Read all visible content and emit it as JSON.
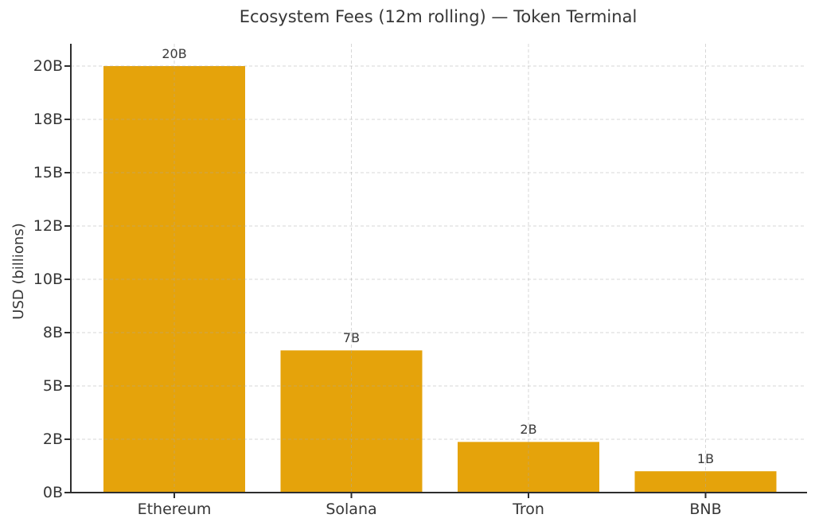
{
  "chart_data": {
    "type": "bar",
    "title": "Ecosystem Fees (12m rolling) — Token Terminal",
    "ylabel": "USD (billions)",
    "xlabel": "",
    "categories": [
      "Ethereum",
      "Solana",
      "Tron",
      "BNB"
    ],
    "values": [
      20,
      7,
      1.9,
      0.8
    ],
    "bar_labels": [
      "20B",
      "7B",
      "2B",
      "1B"
    ],
    "ytick_values": [
      0,
      2,
      5,
      8,
      10,
      12,
      15,
      18,
      20
    ],
    "ytick_labels": [
      "0B",
      "2B",
      "5B",
      "8B",
      "10B",
      "12B",
      "15B",
      "18B",
      "20B"
    ],
    "ylim": [
      0,
      20
    ],
    "legend": "none",
    "grid": "dashed light-gray horizontal lines at every y tick and vertical lines at every bar center, drawn faintly over the bars; y ticks equally spaced despite non-uniform values",
    "colors": {
      "bar": "#E5A30B",
      "axis": "#2e2e2e",
      "text": "#363636",
      "grid": "#a8a8a8",
      "background": "#ffffff"
    }
  }
}
